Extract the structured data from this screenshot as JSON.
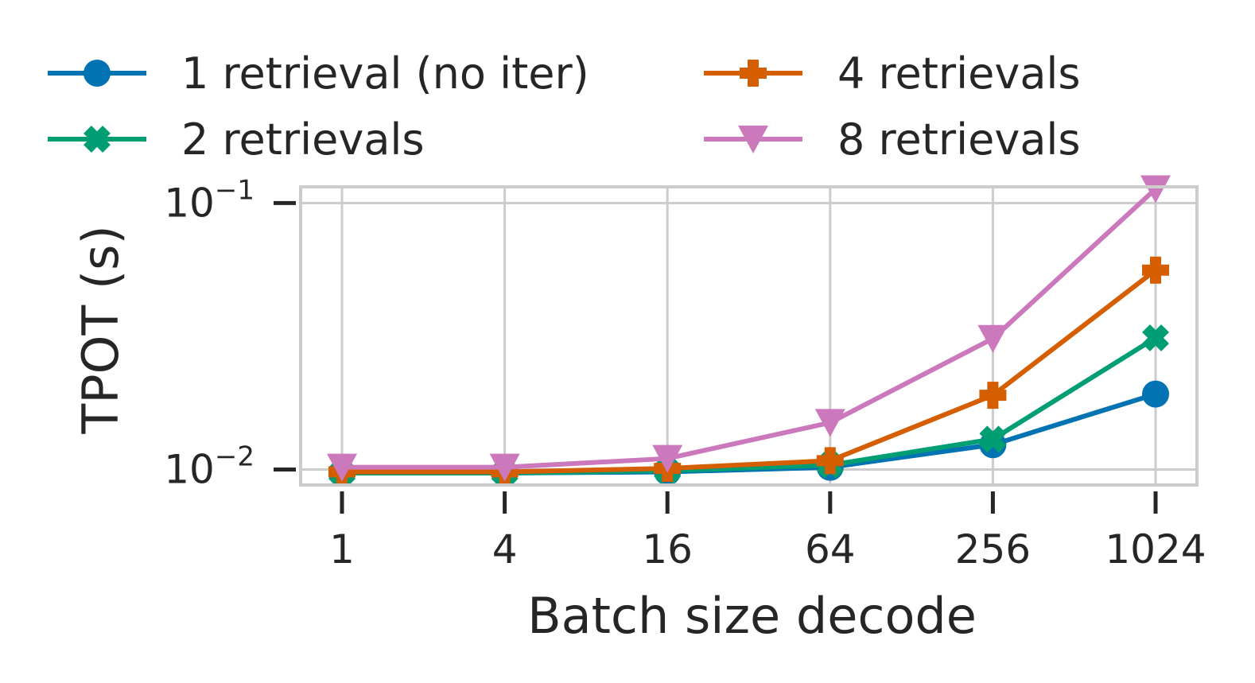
{
  "chart_data": {
    "type": "line",
    "xlabel": "Batch size decode",
    "ylabel": "TPOT (s)",
    "x": [
      1,
      4,
      16,
      64,
      256,
      1024
    ],
    "x_tick_labels": [
      "1",
      "4",
      "16",
      "64",
      "256",
      "1024"
    ],
    "x_scale": "log2",
    "y_scale": "log10",
    "ylim": [
      0.00875,
      0.115
    ],
    "y_ticks": [
      {
        "value": 0.01,
        "base": "10",
        "exp": "−2"
      },
      {
        "value": 0.1,
        "base": "10",
        "exp": "−1"
      }
    ],
    "grid": true,
    "legend": "above-plot, two columns",
    "series": [
      {
        "name": "1 retrieval (no iter)",
        "color": "#0173b2",
        "marker": "circle",
        "values": [
          0.0097,
          0.0097,
          0.0098,
          0.0102,
          0.0124,
          0.0192
        ]
      },
      {
        "name": "2 retrievals",
        "color": "#029e73",
        "marker": "x-filled",
        "values": [
          0.0097,
          0.0097,
          0.0099,
          0.0104,
          0.013,
          0.0312
        ]
      },
      {
        "name": "4 retrievals",
        "color": "#d55e00",
        "marker": "plus-filled",
        "values": [
          0.0098,
          0.0098,
          0.0101,
          0.0108,
          0.019,
          0.056
        ]
      },
      {
        "name": "8 retrievals",
        "color": "#cc78bc",
        "marker": "triangle-down",
        "values": [
          0.0102,
          0.0102,
          0.011,
          0.015,
          0.031,
          0.113
        ]
      }
    ]
  }
}
